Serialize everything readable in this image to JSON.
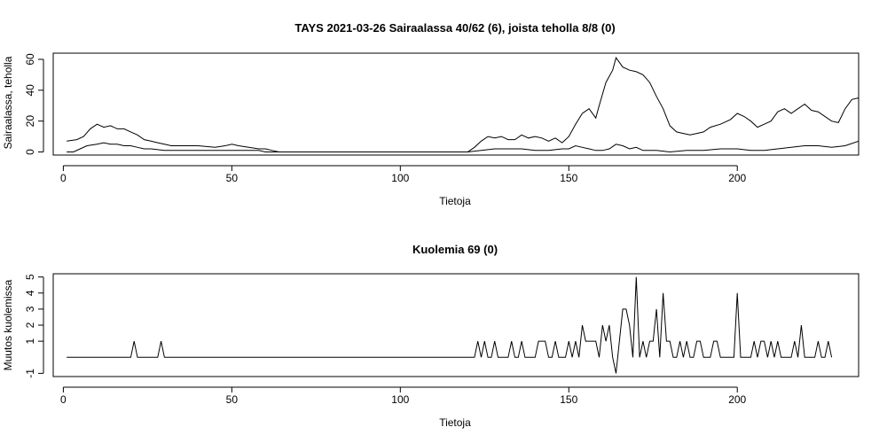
{
  "chart_data": [
    {
      "type": "line",
      "title": "TAYS 2021-03-26 Sairaalassa 40/62 (6), joista teholla 8/8 (0)",
      "xlabel": "Tietoja",
      "ylabel": "Sairaalassa, teholla",
      "xlim": [
        -3,
        236
      ],
      "ylim": [
        -2,
        64
      ],
      "xticks": [
        0,
        50,
        100,
        150,
        200
      ],
      "yticks": [
        0,
        20,
        40,
        60
      ],
      "grid": false,
      "series": [
        {
          "points": [
            [
              1,
              7
            ],
            [
              4,
              8
            ],
            [
              6,
              10
            ],
            [
              8,
              15
            ],
            [
              10,
              18
            ],
            [
              12,
              16
            ],
            [
              14,
              17
            ],
            [
              16,
              15
            ],
            [
              18,
              15
            ],
            [
              20,
              13
            ],
            [
              22,
              11
            ],
            [
              24,
              8
            ],
            [
              26,
              7
            ],
            [
              28,
              6
            ],
            [
              30,
              5
            ],
            [
              32,
              4
            ],
            [
              35,
              4
            ],
            [
              40,
              4
            ],
            [
              45,
              3
            ],
            [
              48,
              4
            ],
            [
              50,
              5
            ],
            [
              52,
              4
            ],
            [
              55,
              3
            ],
            [
              58,
              2
            ],
            [
              60,
              2
            ],
            [
              62,
              1
            ],
            [
              64,
              0
            ],
            [
              70,
              0
            ],
            [
              100,
              0
            ],
            [
              120,
              0
            ],
            [
              122,
              3
            ],
            [
              124,
              7
            ],
            [
              126,
              10
            ],
            [
              128,
              9
            ],
            [
              130,
              10
            ],
            [
              132,
              8
            ],
            [
              134,
              8
            ],
            [
              136,
              11
            ],
            [
              138,
              9
            ],
            [
              140,
              10
            ],
            [
              142,
              9
            ],
            [
              144,
              7
            ],
            [
              146,
              9
            ],
            [
              148,
              6
            ],
            [
              150,
              10
            ],
            [
              152,
              18
            ],
            [
              154,
              25
            ],
            [
              156,
              28
            ],
            [
              158,
              22
            ],
            [
              159,
              30
            ],
            [
              161,
              45
            ],
            [
              163,
              53
            ],
            [
              164,
              61
            ],
            [
              166,
              55
            ],
            [
              168,
              53
            ],
            [
              170,
              52
            ],
            [
              172,
              50
            ],
            [
              174,
              45
            ],
            [
              176,
              36
            ],
            [
              178,
              28
            ],
            [
              180,
              17
            ],
            [
              182,
              13
            ],
            [
              184,
              12
            ],
            [
              186,
              11
            ],
            [
              188,
              12
            ],
            [
              190,
              13
            ],
            [
              192,
              16
            ],
            [
              195,
              18
            ],
            [
              198,
              21
            ],
            [
              200,
              25
            ],
            [
              202,
              23
            ],
            [
              204,
              20
            ],
            [
              206,
              16
            ],
            [
              208,
              18
            ],
            [
              210,
              20
            ],
            [
              212,
              26
            ],
            [
              214,
              28
            ],
            [
              216,
              25
            ],
            [
              218,
              28
            ],
            [
              220,
              31
            ],
            [
              222,
              27
            ],
            [
              224,
              26
            ],
            [
              226,
              23
            ],
            [
              228,
              20
            ],
            [
              230,
              19
            ],
            [
              232,
              28
            ],
            [
              234,
              34
            ],
            [
              236,
              35
            ],
            [
              237,
              40
            ]
          ]
        },
        {
          "points": [
            [
              1,
              0
            ],
            [
              3,
              0
            ],
            [
              5,
              2
            ],
            [
              7,
              4
            ],
            [
              10,
              5
            ],
            [
              12,
              6
            ],
            [
              14,
              5
            ],
            [
              16,
              5
            ],
            [
              18,
              4
            ],
            [
              20,
              4
            ],
            [
              22,
              3
            ],
            [
              24,
              2
            ],
            [
              26,
              2
            ],
            [
              30,
              1
            ],
            [
              40,
              1
            ],
            [
              50,
              1
            ],
            [
              55,
              1
            ],
            [
              58,
              1
            ],
            [
              60,
              0
            ],
            [
              100,
              0
            ],
            [
              120,
              0
            ],
            [
              124,
              1
            ],
            [
              128,
              2
            ],
            [
              132,
              2
            ],
            [
              136,
              2
            ],
            [
              140,
              1
            ],
            [
              144,
              1
            ],
            [
              148,
              2
            ],
            [
              150,
              2
            ],
            [
              152,
              4
            ],
            [
              154,
              3
            ],
            [
              156,
              2
            ],
            [
              158,
              1
            ],
            [
              160,
              1
            ],
            [
              162,
              2
            ],
            [
              164,
              5
            ],
            [
              166,
              4
            ],
            [
              168,
              2
            ],
            [
              170,
              3
            ],
            [
              172,
              1
            ],
            [
              176,
              1
            ],
            [
              180,
              0
            ],
            [
              185,
              1
            ],
            [
              190,
              1
            ],
            [
              195,
              2
            ],
            [
              200,
              2
            ],
            [
              204,
              1
            ],
            [
              208,
              1
            ],
            [
              212,
              2
            ],
            [
              216,
              3
            ],
            [
              220,
              4
            ],
            [
              224,
              4
            ],
            [
              228,
              3
            ],
            [
              232,
              4
            ],
            [
              236,
              7
            ],
            [
              238,
              8
            ]
          ]
        }
      ]
    },
    {
      "type": "line",
      "title": "Kuolemia 69 (0)",
      "xlabel": "Tietoja",
      "ylabel": "Muutos kuolemissa",
      "xlim": [
        -3,
        236
      ],
      "ylim": [
        -1.2,
        5.2
      ],
      "xticks": [
        0,
        50,
        100,
        150,
        200
      ],
      "yticks": [
        -1,
        1,
        2,
        3,
        4,
        5
      ],
      "grid": false,
      "series": [
        {
          "points": [
            [
              1,
              0
            ],
            [
              20,
              0
            ],
            [
              21,
              1
            ],
            [
              22,
              0
            ],
            [
              28,
              0
            ],
            [
              29,
              1
            ],
            [
              30,
              0
            ],
            [
              50,
              0
            ],
            [
              100,
              0
            ],
            [
              122,
              0
            ],
            [
              123,
              1
            ],
            [
              124,
              0
            ],
            [
              125,
              1
            ],
            [
              126,
              0
            ],
            [
              127,
              0
            ],
            [
              128,
              1
            ],
            [
              129,
              0
            ],
            [
              132,
              0
            ],
            [
              133,
              1
            ],
            [
              134,
              0
            ],
            [
              135,
              0
            ],
            [
              136,
              1
            ],
            [
              137,
              0
            ],
            [
              140,
              0
            ],
            [
              141,
              1
            ],
            [
              142,
              1
            ],
            [
              143,
              1
            ],
            [
              144,
              0
            ],
            [
              145,
              0
            ],
            [
              146,
              1
            ],
            [
              147,
              0
            ],
            [
              148,
              0
            ],
            [
              149,
              0
            ],
            [
              150,
              1
            ],
            [
              151,
              0
            ],
            [
              152,
              1
            ],
            [
              153,
              0
            ],
            [
              154,
              2
            ],
            [
              155,
              1
            ],
            [
              156,
              1
            ],
            [
              157,
              1
            ],
            [
              158,
              1
            ],
            [
              159,
              0
            ],
            [
              160,
              2
            ],
            [
              161,
              1
            ],
            [
              162,
              2
            ],
            [
              163,
              0
            ],
            [
              164,
              -1
            ],
            [
              165,
              1
            ],
            [
              166,
              3
            ],
            [
              167,
              3
            ],
            [
              168,
              2
            ],
            [
              169,
              0
            ],
            [
              170,
              5
            ],
            [
              171,
              0
            ],
            [
              172,
              1
            ],
            [
              173,
              0
            ],
            [
              174,
              1
            ],
            [
              175,
              1
            ],
            [
              176,
              3
            ],
            [
              177,
              0
            ],
            [
              178,
              4
            ],
            [
              179,
              1
            ],
            [
              180,
              1
            ],
            [
              181,
              0
            ],
            [
              182,
              0
            ],
            [
              183,
              1
            ],
            [
              184,
              0
            ],
            [
              185,
              1
            ],
            [
              186,
              0
            ],
            [
              187,
              0
            ],
            [
              188,
              1
            ],
            [
              189,
              1
            ],
            [
              190,
              0
            ],
            [
              191,
              0
            ],
            [
              192,
              0
            ],
            [
              193,
              1
            ],
            [
              194,
              1
            ],
            [
              195,
              0
            ],
            [
              196,
              0
            ],
            [
              197,
              0
            ],
            [
              198,
              0
            ],
            [
              199,
              0
            ],
            [
              200,
              4
            ],
            [
              201,
              0
            ],
            [
              202,
              0
            ],
            [
              203,
              0
            ],
            [
              204,
              0
            ],
            [
              205,
              1
            ],
            [
              206,
              0
            ],
            [
              207,
              1
            ],
            [
              208,
              1
            ],
            [
              209,
              0
            ],
            [
              210,
              1
            ],
            [
              211,
              0
            ],
            [
              212,
              1
            ],
            [
              213,
              0
            ],
            [
              214,
              0
            ],
            [
              215,
              0
            ],
            [
              216,
              0
            ],
            [
              217,
              1
            ],
            [
              218,
              0
            ],
            [
              219,
              2
            ],
            [
              220,
              0
            ],
            [
              221,
              0
            ],
            [
              222,
              0
            ],
            [
              223,
              0
            ],
            [
              224,
              1
            ],
            [
              225,
              0
            ],
            [
              226,
              0
            ],
            [
              227,
              1
            ],
            [
              228,
              0
            ]
          ]
        }
      ]
    }
  ]
}
